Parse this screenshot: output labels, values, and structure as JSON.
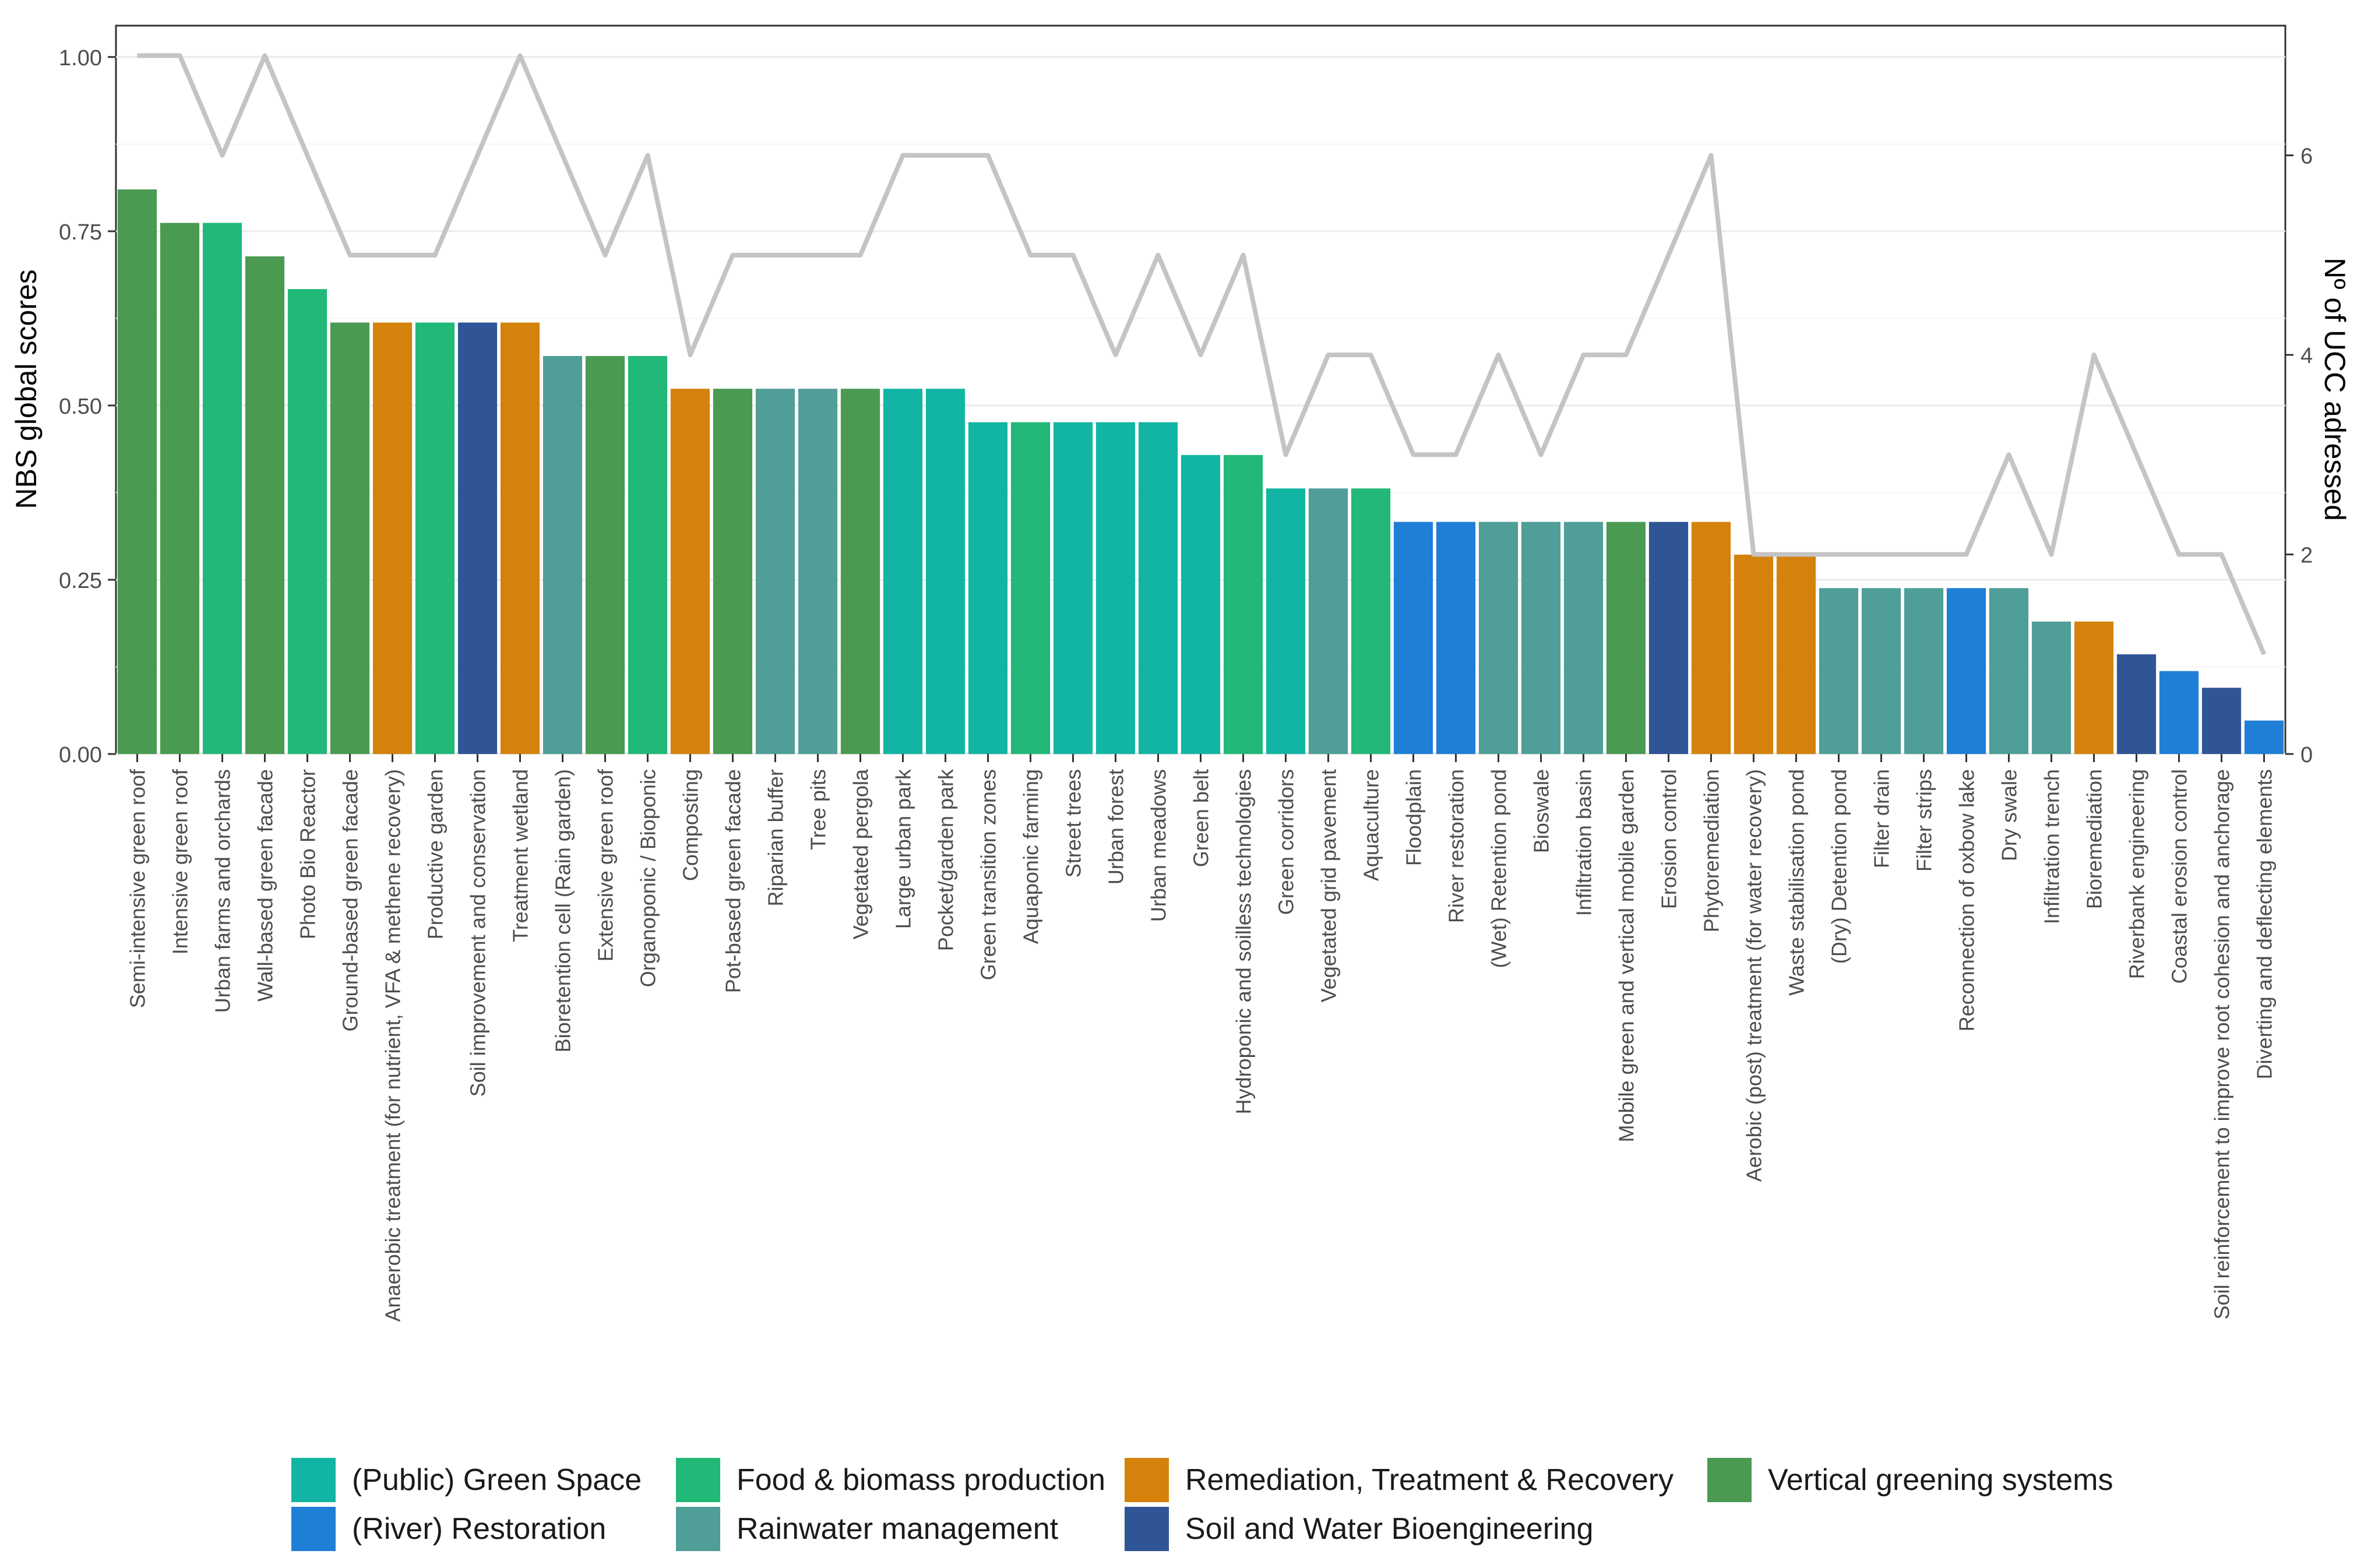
{
  "chart_data": {
    "type": "bar",
    "ylabel": "NBS global scores",
    "y2label": "Nº of UCC adressed",
    "ylim": [
      0,
      1.045
    ],
    "y2lim": [
      0,
      7.3
    ],
    "yticks": [
      "0.00",
      "0.25",
      "0.50",
      "0.75",
      "1.00"
    ],
    "y2ticks": [
      "0",
      "2",
      "4",
      "6"
    ],
    "grid": true,
    "legend_position": "bottom",
    "legend": [
      {
        "name": "(Public) Green Space",
        "color": "#12b5a3"
      },
      {
        "name": "Food & biomass production",
        "color": "#21b878"
      },
      {
        "name": "Remediation, Treatment & Recovery",
        "color": "#d4820c"
      },
      {
        "name": "Vertical greening systems",
        "color": "#4a9a52"
      },
      {
        "name": "(River) Restoration",
        "color": "#1f7ed6"
      },
      {
        "name": "Rainwater management",
        "color": "#4f9e98"
      },
      {
        "name": "Soil and Water Bioengineering",
        "color": "#2f5596"
      }
    ],
    "categories": [
      "Semi-intensive green roof",
      "Intensive green roof",
      "Urban farms and orchards",
      "Wall-based green facade",
      "Photo Bio Reactor",
      "Ground-based green facade",
      "Anaerobic treatment (for nutrient, VFA & methene recovery)",
      "Productive garden",
      "Soil improvement and conservation",
      "Treatment wetland",
      "Bioretention cell (Rain garden)",
      "Extensive green roof",
      "Organoponic / Bioponic",
      "Composting",
      "Pot-based green facade",
      "Riparian buffer",
      "Tree pits",
      "Vegetated pergola",
      "Large urban park",
      "Pocket/garden park",
      "Green transition zones",
      "Aquaponic farming",
      "Street trees",
      "Urban forest",
      "Urban meadows",
      "Green belt",
      "Hydroponic and soilless technologies",
      "Green corridors",
      "Vegetated grid pavement",
      "Aquaculture",
      "Floodplain",
      "River restoration",
      "(Wet) Retention pond",
      "Bioswale",
      "Infiltration basin",
      "Mobile green and vertical mobile garden",
      "Erosion control",
      "Phytoremediation",
      "Aerobic (post) treatment (for water recovery)",
      "Waste stabilisation pond",
      "(Dry) Detention pond",
      "Filter drain",
      "Filter strips",
      "Reconnection of oxbow lake",
      "Dry swale",
      "Infiltration trench",
      "Bioremediation",
      "Riverbank engineering",
      "Coastal erosion control",
      "Soil reinforcement to improve root cohesion and anchorage",
      "Diverting and deflecting elements"
    ],
    "values": [
      0.81,
      0.762,
      0.762,
      0.714,
      0.667,
      0.619,
      0.619,
      0.619,
      0.619,
      0.619,
      0.571,
      0.571,
      0.571,
      0.524,
      0.524,
      0.524,
      0.524,
      0.524,
      0.524,
      0.524,
      0.476,
      0.476,
      0.476,
      0.476,
      0.476,
      0.429,
      0.429,
      0.381,
      0.381,
      0.381,
      0.333,
      0.333,
      0.333,
      0.333,
      0.333,
      0.333,
      0.333,
      0.333,
      0.286,
      0.286,
      0.238,
      0.238,
      0.238,
      0.238,
      0.238,
      0.19,
      0.19,
      0.143,
      0.119,
      0.095,
      0.048
    ],
    "groups": [
      "Vertical greening systems",
      "Vertical greening systems",
      "Food & biomass production",
      "Vertical greening systems",
      "Food & biomass production",
      "Vertical greening systems",
      "Remediation, Treatment & Recovery",
      "Food & biomass production",
      "Soil and Water Bioengineering",
      "Remediation, Treatment & Recovery",
      "Rainwater management",
      "Vertical greening systems",
      "Food & biomass production",
      "Remediation, Treatment & Recovery",
      "Vertical greening systems",
      "Rainwater management",
      "Rainwater management",
      "Vertical greening systems",
      "(Public) Green Space",
      "(Public) Green Space",
      "(Public) Green Space",
      "Food & biomass production",
      "(Public) Green Space",
      "(Public) Green Space",
      "(Public) Green Space",
      "(Public) Green Space",
      "Food & biomass production",
      "(Public) Green Space",
      "Rainwater management",
      "Food & biomass production",
      "(River) Restoration",
      "(River) Restoration",
      "Rainwater management",
      "Rainwater management",
      "Rainwater management",
      "Vertical greening systems",
      "Soil and Water Bioengineering",
      "Remediation, Treatment & Recovery",
      "Remediation, Treatment & Recovery",
      "Remediation, Treatment & Recovery",
      "Rainwater management",
      "Rainwater management",
      "Rainwater management",
      "(River) Restoration",
      "Rainwater management",
      "Rainwater management",
      "Remediation, Treatment & Recovery",
      "Soil and Water Bioengineering",
      "(River) Restoration",
      "Soil and Water Bioengineering",
      "(River) Restoration"
    ],
    "ucc": [
      7,
      7,
      6,
      7,
      6,
      5,
      5,
      5,
      6,
      7,
      6,
      5,
      6,
      4,
      5,
      5,
      5,
      5,
      6,
      6,
      6,
      5,
      5,
      4,
      5,
      4,
      5,
      3,
      4,
      4,
      3,
      3,
      4,
      3,
      4,
      4,
      5,
      6,
      2,
      2,
      2,
      2,
      2,
      2,
      3,
      2,
      4,
      3,
      2,
      2,
      1
    ]
  }
}
